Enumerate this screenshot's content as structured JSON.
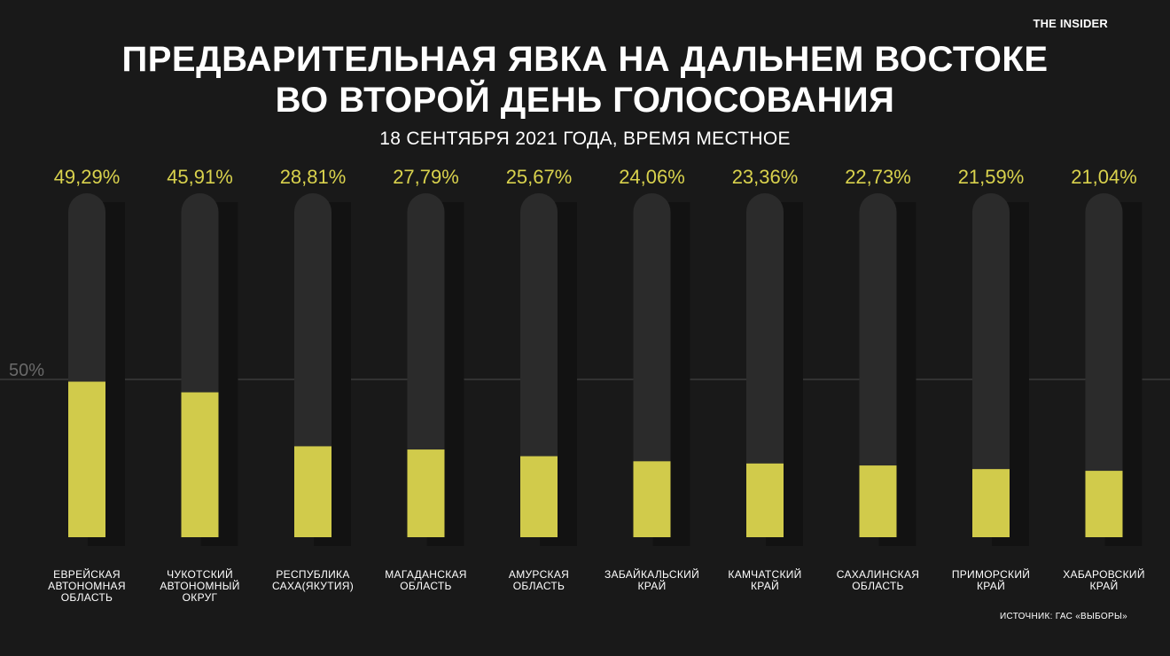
{
  "brand": "THE INSIDER",
  "title_line1": "ПРЕДВАРИТЕЛЬНАЯ ЯВКА НА ДАЛЬНЕМ ВОСТОКЕ",
  "title_line2": "ВО ВТОРОЙ ДЕНЬ ГОЛОСОВАНИЯ",
  "subtitle": "18 СЕНТЯБРЯ 2021 ГОДА, ВРЕМЯ МЕСТНОЕ",
  "source": "ИСТОЧНИК: ГАС «ВЫБОРЫ»",
  "colors": {
    "background": "#191919",
    "bar_track": "#2b2b2b",
    "bar_fill": "#d1cb4b",
    "value_label": "#d9d24d",
    "reference_line": "#4a4a4a",
    "reference_label": "#6a6a6a"
  },
  "chart_data": {
    "type": "bar",
    "title": "ПРЕДВАРИТЕЛЬНАЯ ЯВКА НА ДАЛЬНЕМ ВОСТОКЕ ВО ВТОРОЙ ДЕНЬ ГОЛОСОВАНИЯ",
    "subtitle": "18 СЕНТЯБРЯ 2021 ГОДА, ВРЕМЯ МЕСТНОЕ",
    "categories": [
      [
        "ЕВРЕЙСКАЯ",
        "АВТОНОМНАЯ",
        "ОБЛАСТЬ"
      ],
      [
        "ЧУКОТСКИЙ",
        "АВТОНОМНЫЙ",
        "ОКРУГ"
      ],
      [
        "РЕСПУБЛИКА",
        "САХА(ЯКУТИЯ)"
      ],
      [
        "МАГАДАНСКАЯ",
        "ОБЛАСТЬ"
      ],
      [
        "АМУРСКАЯ",
        "ОБЛАСТЬ"
      ],
      [
        "ЗАБАЙКАЛЬСКИЙ",
        "КРАЙ"
      ],
      [
        "КАМЧАТСКИЙ",
        "КРАЙ"
      ],
      [
        "САХАЛИНСКАЯ",
        "ОБЛАСТЬ"
      ],
      [
        "ПРИМОРСКИЙ",
        "КРАЙ"
      ],
      [
        "ХАБАРОВСКИЙ",
        "КРАЙ"
      ]
    ],
    "values": [
      49.29,
      45.91,
      28.81,
      27.79,
      25.67,
      24.06,
      23.36,
      22.73,
      21.59,
      21.04
    ],
    "value_labels": [
      "49,29%",
      "45,91%",
      "28,81%",
      "27,79%",
      "25,67%",
      "24,06%",
      "23,36%",
      "22,73%",
      "21,59%",
      "21,04%"
    ],
    "reference": {
      "value": 50,
      "label": "50%"
    },
    "xlabel": "",
    "ylabel": "",
    "grid": false,
    "legend": "none"
  }
}
